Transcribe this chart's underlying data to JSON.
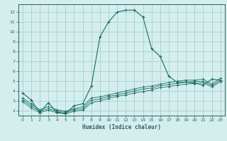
{
  "xlabel": "Humidex (Indice chaleur)",
  "bg_color": "#d4eeee",
  "grid_color": "#aacece",
  "line_color": "#1a6e60",
  "border_color": "#2a6060",
  "xlim": [
    -0.5,
    23.5
  ],
  "ylim": [
    1.5,
    12.8
  ],
  "xticks": [
    0,
    1,
    2,
    3,
    4,
    5,
    6,
    7,
    8,
    9,
    10,
    11,
    12,
    13,
    14,
    15,
    16,
    17,
    18,
    19,
    20,
    21,
    22,
    23
  ],
  "yticks": [
    2,
    3,
    4,
    5,
    6,
    7,
    8,
    9,
    10,
    11,
    12
  ],
  "line1_x": [
    0,
    1,
    2,
    3,
    4,
    5,
    6,
    7,
    8,
    9,
    10,
    11,
    12,
    13,
    14,
    15,
    16,
    17,
    18,
    19,
    20,
    21,
    22,
    23
  ],
  "line1_y": [
    3.8,
    3.1,
    1.8,
    2.8,
    1.85,
    1.7,
    2.5,
    2.7,
    4.5,
    9.5,
    11.0,
    12.0,
    12.2,
    12.2,
    11.5,
    8.3,
    7.5,
    5.5,
    4.85,
    4.9,
    4.8,
    4.6,
    5.2,
    5.1
  ],
  "line2_x": [
    0,
    1,
    2,
    3,
    4,
    5,
    6,
    7,
    8,
    9,
    10,
    11,
    12,
    13,
    14,
    15,
    16,
    17,
    18,
    19,
    20,
    21,
    22,
    23
  ],
  "line2_y": [
    3.3,
    2.7,
    2.1,
    2.4,
    2.1,
    1.95,
    2.2,
    2.4,
    3.3,
    3.4,
    3.6,
    3.8,
    4.0,
    4.2,
    4.4,
    4.5,
    4.7,
    4.85,
    5.0,
    5.1,
    5.1,
    5.2,
    4.7,
    5.3
  ],
  "line3_x": [
    0,
    1,
    2,
    3,
    4,
    5,
    6,
    7,
    8,
    9,
    10,
    11,
    12,
    13,
    14,
    15,
    16,
    17,
    18,
    19,
    20,
    21,
    22,
    23
  ],
  "line3_y": [
    3.1,
    2.5,
    1.95,
    2.2,
    1.95,
    1.82,
    2.1,
    2.2,
    3.05,
    3.2,
    3.45,
    3.6,
    3.8,
    4.0,
    4.2,
    4.3,
    4.55,
    4.65,
    4.8,
    4.9,
    4.95,
    5.0,
    4.55,
    5.1
  ],
  "line4_x": [
    0,
    1,
    2,
    3,
    4,
    5,
    6,
    7,
    8,
    9,
    10,
    11,
    12,
    13,
    14,
    15,
    16,
    17,
    18,
    19,
    20,
    21,
    22,
    23
  ],
  "line4_y": [
    2.9,
    2.3,
    1.8,
    2.05,
    1.8,
    1.68,
    1.95,
    2.05,
    2.8,
    3.0,
    3.25,
    3.45,
    3.6,
    3.8,
    3.95,
    4.1,
    4.35,
    4.45,
    4.6,
    4.7,
    4.75,
    4.85,
    4.4,
    4.95
  ]
}
